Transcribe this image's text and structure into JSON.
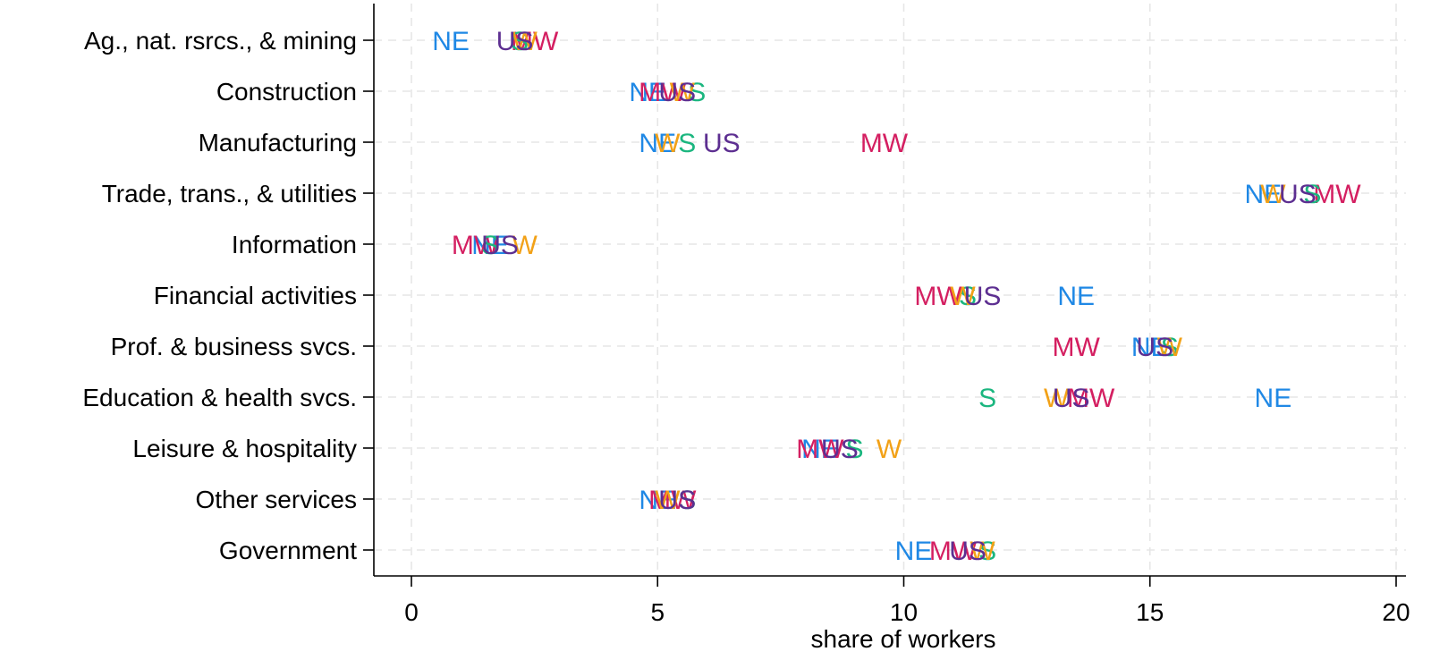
{
  "chart_data": {
    "type": "scatter",
    "title": "",
    "xlabel": "share of workers",
    "ylabel": "",
    "xlim": [
      -0.7,
      20.3
    ],
    "xticks": [
      0,
      5,
      10,
      15,
      20
    ],
    "grid": true,
    "legend": "none",
    "categories": [
      "Ag., nat. rsrcs., & mining",
      "Construction",
      "Manufacturing",
      "Trade, trans., & utilities",
      "Information",
      "Financial activities",
      "Prof. & business svcs.",
      "Education & health svcs.",
      "Leisure & hospitality",
      "Other services",
      "Government"
    ],
    "series": [
      {
        "name": "NE",
        "color": "#1f88e5",
        "values": [
          0.8,
          4.8,
          5.0,
          17.3,
          1.6,
          13.5,
          15.0,
          17.5,
          8.3,
          5.0,
          10.2
        ]
      },
      {
        "name": "MW",
        "color": "#d41f61",
        "values": [
          2.5,
          5.1,
          9.6,
          18.8,
          1.3,
          10.7,
          13.5,
          13.8,
          8.3,
          5.3,
          11.0
        ]
      },
      {
        "name": "S",
        "color": "#1bb67f",
        "values": [
          2.2,
          5.8,
          5.6,
          18.3,
          1.6,
          11.3,
          15.4,
          11.7,
          9.0,
          5.6,
          11.7
        ]
      },
      {
        "name": "W",
        "color": "#f2a117",
        "values": [
          2.3,
          5.5,
          5.2,
          17.5,
          2.3,
          11.2,
          15.4,
          13.1,
          9.7,
          5.2,
          11.6
        ]
      },
      {
        "name": "US",
        "color": "#5d2f91",
        "values": [
          2.1,
          5.4,
          6.3,
          18.0,
          1.8,
          11.6,
          15.1,
          13.4,
          8.7,
          5.4,
          11.3
        ]
      }
    ]
  }
}
